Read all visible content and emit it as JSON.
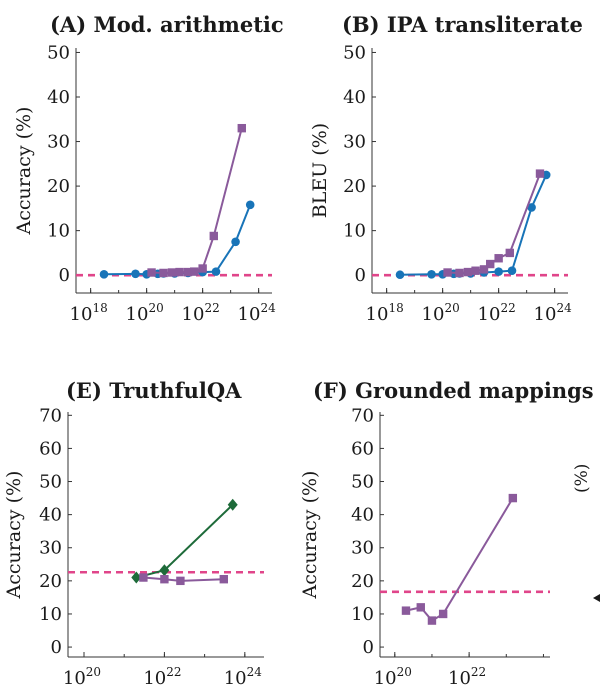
{
  "colors": {
    "purple": "#8a5a9b",
    "blue": "#1874b8",
    "green": "#1e6b3a",
    "baseline": "#e0458a",
    "axis": "#333333"
  },
  "chart_data": [
    {
      "panel": "A",
      "type": "line",
      "title": "(A) Mod. arithmetic",
      "ylabel": "Accuracy (%)",
      "xscale": "log",
      "xlim": [
        3e+17,
        3e+24
      ],
      "ylim": [
        -4,
        51
      ],
      "yticks": [
        0,
        10,
        20,
        30,
        40,
        50
      ],
      "xtick_labels": [
        {
          "base": "10",
          "exp": "18",
          "value": 1e+18
        },
        {
          "base": "10",
          "exp": "20",
          "value": 1e+20
        },
        {
          "base": "10",
          "exp": "22",
          "value": 1e+22
        },
        {
          "base": "10",
          "exp": "24",
          "value": 1e+24
        }
      ],
      "baseline": 0,
      "series": [
        {
          "color": "blue",
          "marker": "circle",
          "x": [
            3e+18,
            4e+19,
            1e+20,
            2.5e+20,
            4e+20,
            1e+21,
            3e+21,
            1e+22,
            3e+22,
            1.5e+23,
            5e+23
          ],
          "y": [
            0.2,
            0.3,
            0.2,
            0.3,
            0.4,
            0.4,
            0.5,
            0.7,
            0.8,
            7.5,
            15.8
          ]
        },
        {
          "color": "purple",
          "marker": "square",
          "x": [
            1.5e+20,
            4e+20,
            8e+20,
            1.5e+21,
            3e+21,
            5e+21,
            1e+22,
            2.5e+22,
            2.5e+23
          ],
          "y": [
            0.6,
            0.5,
            0.6,
            0.7,
            0.7,
            0.8,
            1.5,
            8.8,
            33.0
          ]
        }
      ]
    },
    {
      "panel": "B",
      "type": "line",
      "title": "(B) IPA transliterate",
      "ylabel": "BLEU (%)",
      "xscale": "log",
      "xlim": [
        3e+17,
        3e+24
      ],
      "ylim": [
        -4,
        51
      ],
      "yticks": [
        0,
        10,
        20,
        30,
        40,
        50
      ],
      "xtick_labels": [
        {
          "base": "10",
          "exp": "18",
          "value": 1e+18
        },
        {
          "base": "10",
          "exp": "20",
          "value": 1e+20
        },
        {
          "base": "10",
          "exp": "22",
          "value": 1e+22
        },
        {
          "base": "10",
          "exp": "24",
          "value": 1e+24
        }
      ],
      "baseline": 0,
      "series": [
        {
          "color": "blue",
          "marker": "circle",
          "x": [
            3e+18,
            4e+19,
            1e+20,
            2.5e+20,
            4e+20,
            1e+21,
            3e+21,
            1e+22,
            3e+22,
            1.5e+23,
            5e+23
          ],
          "y": [
            0.1,
            0.2,
            0.2,
            0.3,
            0.4,
            0.4,
            0.6,
            0.8,
            1.0,
            15.2,
            22.5
          ]
        },
        {
          "color": "purple",
          "marker": "square",
          "x": [
            1.5e+20,
            4e+20,
            8e+20,
            1.5e+21,
            3e+21,
            5e+21,
            1e+22,
            2.5e+22,
            3e+23
          ],
          "y": [
            0.6,
            0.5,
            0.7,
            1.0,
            1.3,
            2.5,
            3.8,
            5.0,
            22.8
          ]
        }
      ]
    },
    {
      "panel": "E",
      "type": "line",
      "title": "(E) TruthfulQA",
      "ylabel": "Accuracy (%)",
      "xscale": "log",
      "xlim": [
        4e+19,
        3e+24
      ],
      "ylim": [
        -3,
        71
      ],
      "yticks": [
        0,
        10,
        20,
        30,
        40,
        50,
        60,
        70
      ],
      "xtick_labels": [
        {
          "base": "10",
          "exp": "20",
          "value": 1e+20
        },
        {
          "base": "10",
          "exp": "22",
          "value": 1e+22
        },
        {
          "base": "10",
          "exp": "24",
          "value": 1e+24
        }
      ],
      "baseline": 22.6,
      "series": [
        {
          "color": "green",
          "marker": "diamond",
          "x": [
            2e+21,
            1e+22,
            5e+23
          ],
          "y": [
            21.0,
            23.2,
            43.0
          ]
        },
        {
          "color": "purple",
          "marker": "square",
          "x": [
            3e+21,
            1e+22,
            2.5e+22,
            3e+23
          ],
          "y": [
            21.0,
            20.5,
            20.0,
            20.5
          ]
        }
      ]
    },
    {
      "panel": "F",
      "type": "line",
      "title": "(F) Grounded mappings",
      "ylabel": "Accuracy (%)",
      "xscale": "log",
      "xlim": [
        4e+19,
        1.5e+24
      ],
      "ylim": [
        -3,
        71
      ],
      "yticks": [
        0,
        10,
        20,
        30,
        40,
        50,
        60,
        70
      ],
      "xtick_labels": [
        {
          "base": "10",
          "exp": "20",
          "value": 1e+20
        },
        {
          "base": "10",
          "exp": "22",
          "value": 1e+22
        }
      ],
      "baseline": 16.7,
      "series": [
        {
          "color": "purple",
          "marker": "square",
          "x": [
            2e+20,
            5e+20,
            1e+21,
            2e+21,
            1.5e+23
          ],
          "y": [
            11.0,
            12.0,
            8.0,
            10.0,
            45.0
          ]
        }
      ]
    }
  ]
}
